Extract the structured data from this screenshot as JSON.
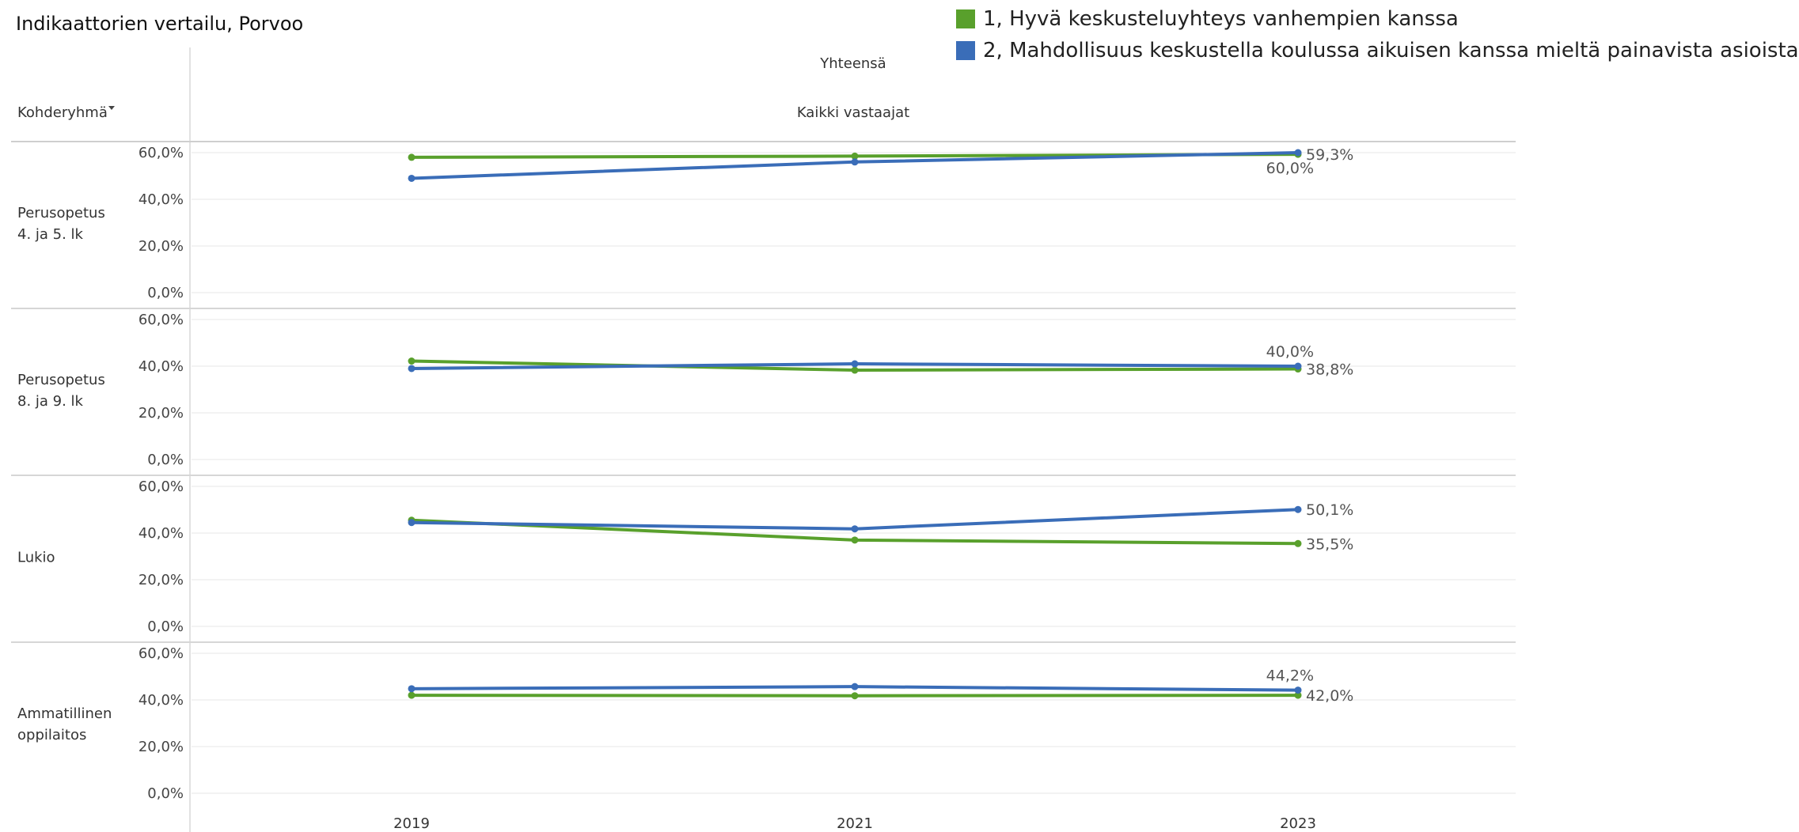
{
  "title": "Indikaattorien vertailu, Porvoo",
  "legend": [
    {
      "label": "1, Hyvä keskusteluyhteys vanhempien kanssa",
      "color": "#59A02C"
    },
    {
      "label": "2, Mahdollisuus keskustella koulussa aikuisen kanssa mieltä painavista asioista",
      "color": "#3A6DB8"
    }
  ],
  "header": {
    "column_group": "Yhteensä",
    "column_sub": "Kaikki vastaajat",
    "row_dimension": "Kohderyhmä"
  },
  "chart_data": {
    "type": "line",
    "x": [
      "2019",
      "2021",
      "2023"
    ],
    "y_ticks": [
      "0,0%",
      "20,0%",
      "40,0%",
      "60,0%"
    ],
    "ylim": [
      0,
      60
    ],
    "grid": true,
    "legend_position": "top-right",
    "panels": [
      {
        "row_label": [
          "Perusopetus",
          "4. ja 5. lk"
        ],
        "series": [
          {
            "name": "1, Hyvä keskusteluyhteys vanhempien kanssa",
            "values": [
              58.0,
              58.5,
              59.3
            ],
            "end_label": "59,3%"
          },
          {
            "name": "2, Mahdollisuus keskustella koulussa aikuisen kanssa mieltä painavista asioista",
            "values": [
              49.0,
              56.0,
              60.0
            ],
            "end_label": "60,0%"
          }
        ]
      },
      {
        "row_label": [
          "Perusopetus",
          "8. ja 9. lk"
        ],
        "series": [
          {
            "name": "1, Hyvä keskusteluyhteys vanhempien kanssa",
            "values": [
              42.2,
              38.3,
              38.8
            ],
            "end_label": "38,8%"
          },
          {
            "name": "2, Mahdollisuus keskustella koulussa aikuisen kanssa mieltä painavista asioista",
            "values": [
              39.0,
              41.0,
              40.0
            ],
            "end_label": "40,0%"
          }
        ]
      },
      {
        "row_label": [
          "Lukio"
        ],
        "series": [
          {
            "name": "1, Hyvä keskusteluyhteys vanhempien kanssa",
            "values": [
              45.5,
              37.0,
              35.5
            ],
            "end_label": "35,5%"
          },
          {
            "name": "2, Mahdollisuus keskustella koulussa aikuisen kanssa mieltä painavista asioista",
            "values": [
              44.5,
              41.8,
              50.1
            ],
            "end_label": "50,1%"
          }
        ]
      },
      {
        "row_label": [
          "Ammatillinen",
          "oppilaitos"
        ],
        "series": [
          {
            "name": "1, Hyvä keskusteluyhteys vanhempien kanssa",
            "values": [
              42.0,
              41.8,
              42.0
            ],
            "end_label": "42,0%"
          },
          {
            "name": "2, Mahdollisuus keskustella koulussa aikuisen kanssa mieltä painavista asioista",
            "values": [
              44.8,
              45.7,
              44.2
            ],
            "end_label": "44,2%"
          }
        ]
      }
    ]
  }
}
